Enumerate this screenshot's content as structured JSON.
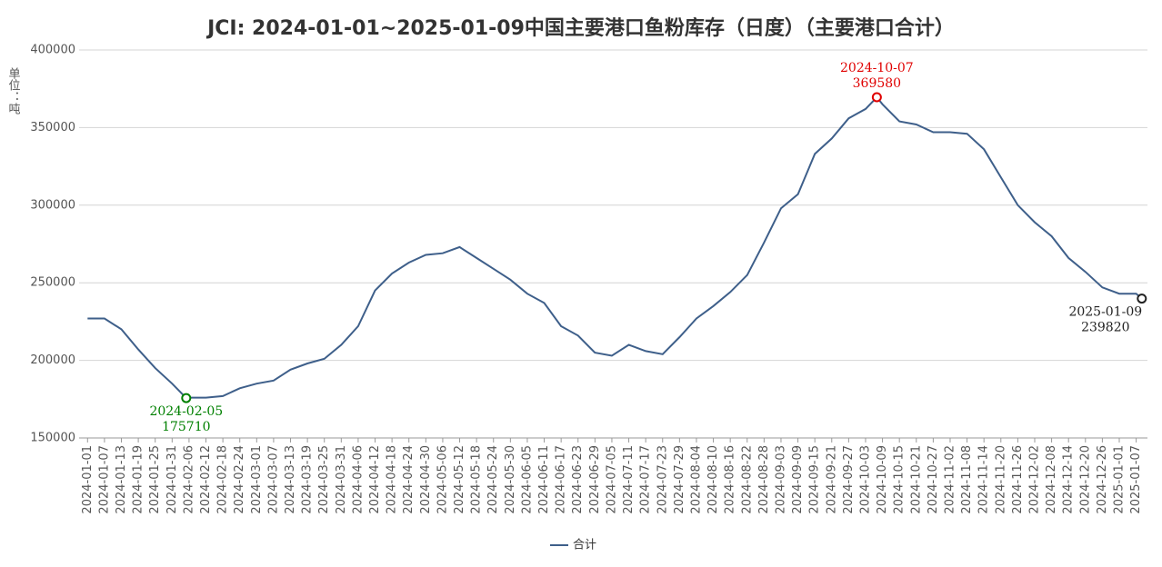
{
  "chart_data": {
    "type": "line",
    "title": "JCI: 2024-01-01~2025-01-09中国主要港口鱼粉库存（日度）（主要港口合计）",
    "y_label": "单位：吨",
    "x": [
      "2024-01-01",
      "2024-01-07",
      "2024-01-13",
      "2024-01-19",
      "2024-01-25",
      "2024-01-31",
      "2024-02-05",
      "2024-02-06",
      "2024-02-12",
      "2024-02-18",
      "2024-02-24",
      "2024-03-01",
      "2024-03-07",
      "2024-03-13",
      "2024-03-19",
      "2024-03-25",
      "2024-03-31",
      "2024-04-06",
      "2024-04-12",
      "2024-04-18",
      "2024-04-24",
      "2024-04-30",
      "2024-05-06",
      "2024-05-12",
      "2024-05-18",
      "2024-05-24",
      "2024-05-30",
      "2024-06-05",
      "2024-06-11",
      "2024-06-17",
      "2024-06-23",
      "2024-06-29",
      "2024-07-05",
      "2024-07-11",
      "2024-07-17",
      "2024-07-23",
      "2024-07-29",
      "2024-08-04",
      "2024-08-10",
      "2024-08-16",
      "2024-08-22",
      "2024-08-28",
      "2024-09-03",
      "2024-09-09",
      "2024-09-15",
      "2024-09-21",
      "2024-09-27",
      "2024-10-03",
      "2024-10-07",
      "2024-10-09",
      "2024-10-15",
      "2024-10-21",
      "2024-10-27",
      "2024-11-02",
      "2024-11-08",
      "2024-11-14",
      "2024-11-20",
      "2024-11-26",
      "2024-12-02",
      "2024-12-08",
      "2024-12-14",
      "2024-12-20",
      "2024-12-26",
      "2025-01-01",
      "2025-01-07",
      "2025-01-09"
    ],
    "series": [
      {
        "name": "合计",
        "color": "#3e5f8a",
        "values": [
          227000,
          227000,
          220000,
          207000,
          195000,
          185000,
          175710,
          176000,
          176000,
          177000,
          182000,
          185000,
          187000,
          194000,
          198000,
          201000,
          210000,
          222000,
          245000,
          256000,
          263000,
          268000,
          269000,
          273000,
          266000,
          259000,
          252000,
          243000,
          237000,
          222000,
          216000,
          205000,
          203000,
          210000,
          206000,
          204000,
          215000,
          227000,
          235000,
          244000,
          255000,
          276000,
          298000,
          307000,
          333000,
          343000,
          356000,
          362000,
          369580,
          365000,
          354000,
          352000,
          347000,
          347000,
          346000,
          336000,
          318000,
          300000,
          289000,
          280000,
          266000,
          257000,
          247000,
          243000,
          243000,
          239820
        ]
      }
    ],
    "xlim": [
      "2023-12-29",
      "2025-01-11"
    ],
    "xticks": [
      "2024-01-01",
      "2024-01-07",
      "2024-01-13",
      "2024-01-19",
      "2024-01-25",
      "2024-01-31",
      "2024-02-06",
      "2024-02-12",
      "2024-02-18",
      "2024-02-24",
      "2024-03-01",
      "2024-03-07",
      "2024-03-13",
      "2024-03-19",
      "2024-03-25",
      "2024-03-31",
      "2024-04-06",
      "2024-04-12",
      "2024-04-18",
      "2024-04-24",
      "2024-04-30",
      "2024-05-06",
      "2024-05-12",
      "2024-05-18",
      "2024-05-24",
      "2024-05-30",
      "2024-06-05",
      "2024-06-11",
      "2024-06-17",
      "2024-06-23",
      "2024-06-29",
      "2024-07-05",
      "2024-07-11",
      "2024-07-17",
      "2024-07-23",
      "2024-07-29",
      "2024-08-04",
      "2024-08-10",
      "2024-08-16",
      "2024-08-22",
      "2024-08-28",
      "2024-09-03",
      "2024-09-09",
      "2024-09-15",
      "2024-09-21",
      "2024-09-27",
      "2024-10-03",
      "2024-10-09",
      "2024-10-15",
      "2024-10-21",
      "2024-10-27",
      "2024-11-02",
      "2024-11-08",
      "2024-11-14",
      "2024-11-20",
      "2024-11-26",
      "2024-12-02",
      "2024-12-08",
      "2024-12-14",
      "2024-12-20",
      "2024-12-26",
      "2025-01-01",
      "2025-01-07"
    ],
    "ylim": [
      150000,
      400000
    ],
    "yticks": [
      150000,
      200000,
      250000,
      300000,
      350000,
      400000
    ],
    "grid": true,
    "legend": "bottom",
    "min_color": "#008000",
    "max_color": "#e00000",
    "last_color": "#222222"
  }
}
